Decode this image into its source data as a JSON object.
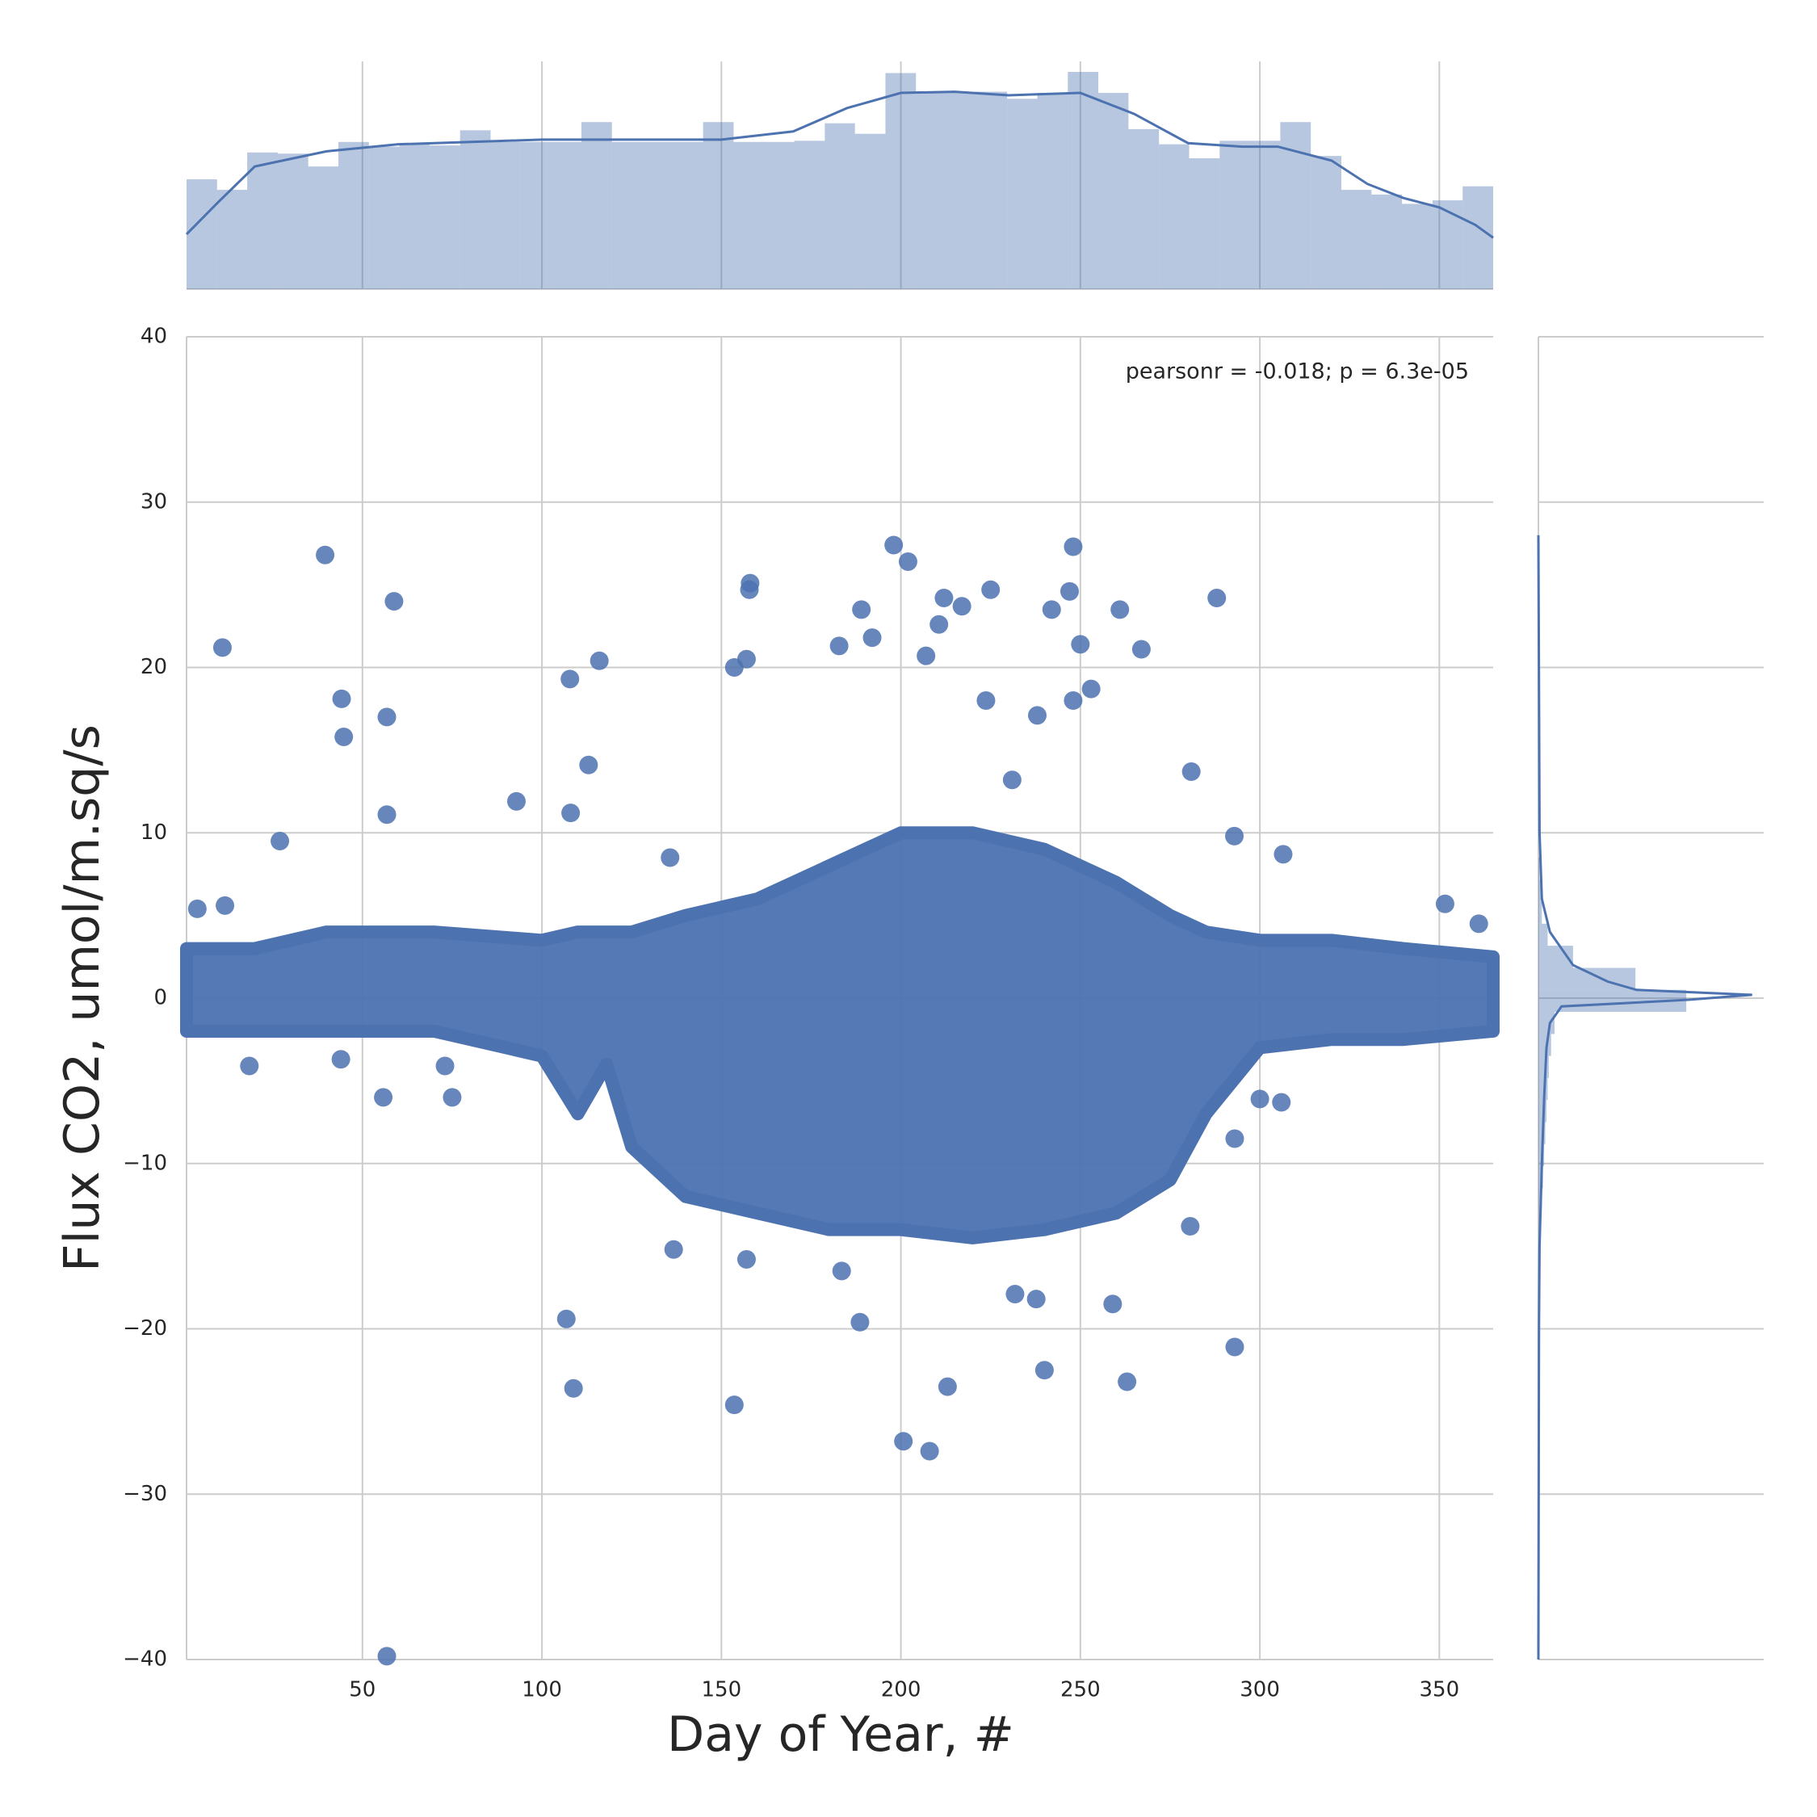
{
  "chart_data": {
    "type": "jointplot",
    "color": "#4c72b0",
    "hist_color": "#b4c3de",
    "grid": true,
    "xlabel": "Day of Year, #",
    "ylabel": "Flux CO2, umol/m.sq/s",
    "annotation": "pearsonr = -0.018; p = 6.3e-05",
    "xlim": [
      1,
      365
    ],
    "ylim": [
      -40,
      40
    ],
    "xticks": [
      50,
      100,
      150,
      200,
      250,
      300,
      350
    ],
    "yticks": [
      {
        "value": -40,
        "label": "−40"
      },
      {
        "value": -30,
        "label": "−30"
      },
      {
        "value": -20,
        "label": "−20"
      },
      {
        "value": -10,
        "label": "−10"
      },
      0,
      10,
      20,
      30,
      40
    ],
    "scatter": {
      "x": [
        39.6,
        11,
        58.8,
        44.2,
        44.8,
        56.8,
        56.8,
        27,
        56.8,
        107.8,
        116,
        92.9,
        108,
        113,
        106.8,
        108.8,
        153.6,
        158,
        157.8,
        153.6,
        157,
        198,
        202,
        182.8,
        189,
        192,
        212,
        225,
        217,
        242,
        248,
        247,
        250,
        261,
        267,
        288,
        292.9,
        306.5,
        293,
        240,
        263,
        213,
        200.7,
        208,
        188.6,
        259,
        207,
        210.6,
        223.7,
        248,
        253,
        4,
        11.7,
        18.5,
        44,
        55.8,
        75,
        73,
        300,
        306,
        293,
        351.6,
        361,
        280.9,
        280.6,
        136.7,
        157,
        237.7,
        183.5,
        231.8,
        135.7,
        231,
        238
      ],
      "y": [
        26.8,
        21.2,
        24.0,
        18.1,
        15.8,
        17.0,
        11.1,
        9.5,
        -39.8,
        19.3,
        20.4,
        11.9,
        11.2,
        14.1,
        -19.4,
        -23.6,
        -24.6,
        25.1,
        24.7,
        20.0,
        20.5,
        27.4,
        26.4,
        21.3,
        23.5,
        21.8,
        24.2,
        24.7,
        23.7,
        23.5,
        27.3,
        24.6,
        21.4,
        23.5,
        21.1,
        24.2,
        9.8,
        8.7,
        -21.1,
        -22.5,
        -23.2,
        -23.5,
        -26.8,
        -27.4,
        -19.6,
        -18.5,
        20.7,
        22.6,
        18.0,
        18.0,
        18.7,
        5.4,
        5.6,
        -4.1,
        -3.7,
        -6.0,
        -6.0,
        -4.1,
        -6.1,
        -6.3,
        -8.5,
        5.7,
        4.5,
        13.7,
        -13.8,
        -15.2,
        -15.8,
        -18.2,
        -16.5,
        -17.9,
        8.5,
        13.2,
        17.1
      ]
    },
    "envelope": {
      "x": [
        1,
        20,
        40,
        70,
        100,
        110,
        118,
        125,
        140,
        160,
        180,
        200,
        220,
        240,
        260,
        275,
        285,
        300,
        320,
        340,
        365
      ],
      "upper": [
        3,
        3,
        4,
        4,
        3.5,
        4,
        4,
        4,
        5,
        6,
        8,
        10,
        10,
        9,
        7,
        5,
        4,
        3.5,
        3.5,
        3,
        2.5
      ],
      "lower": [
        -2,
        -2,
        -2,
        -2,
        -3.5,
        -7,
        -4,
        -9,
        -12,
        -13,
        -14,
        -14,
        -14.5,
        -14,
        -13,
        -11,
        -7,
        -3,
        -2.5,
        -2.5,
        -2
      ]
    },
    "x_marginal": {
      "lim": [
        0,
        195
      ],
      "bins": [
        1,
        9.5,
        17.9,
        26.4,
        34.9,
        43.3,
        51.8,
        60.3,
        68.7,
        77.2,
        85.7,
        94.1,
        102.6,
        111.0,
        119.5,
        128.0,
        136.4,
        144.9,
        153.4,
        161.8,
        170.3,
        178.8,
        187.2,
        195.7,
        204.2,
        212.6,
        221.1,
        229.6,
        238.0,
        246.5,
        255.0,
        263.4,
        271.9,
        280.3,
        288.8,
        297.3,
        305.7,
        314.2,
        322.7,
        331.1,
        339.6,
        348.1,
        356.5,
        365
      ],
      "counts": [
        94,
        85,
        117,
        116,
        105,
        126,
        122,
        124,
        123,
        136,
        126,
        126,
        126,
        143,
        126,
        126,
        126,
        143,
        126,
        126,
        127,
        142,
        133,
        185,
        169,
        169,
        169,
        163,
        168,
        186,
        168,
        137,
        124,
        112,
        127,
        127,
        143,
        114,
        85,
        81,
        73,
        76,
        88
      ],
      "kde": {
        "x": [
          1,
          10,
          20,
          40,
          60,
          100,
          150,
          170,
          185,
          200,
          215,
          230,
          250,
          265,
          280,
          295,
          305,
          320,
          330,
          340,
          350,
          360,
          365
        ],
        "y": [
          47,
          75,
          105,
          118,
          124,
          128,
          128,
          135,
          155,
          168,
          169,
          166,
          168,
          150,
          125,
          122,
          122,
          110,
          90,
          78,
          70,
          55,
          44
        ]
      }
    },
    "y_marginal": {
      "lim": [
        0,
        195
      ],
      "bins": [
        -15.5,
        -14.17,
        -12.83,
        -11.5,
        -10.17,
        -8.83,
        -7.5,
        -6.17,
        -4.83,
        -3.5,
        -2.17,
        -0.83,
        0.5,
        1.83,
        3.17,
        4.5,
        5.83,
        7.17,
        8.5
      ],
      "counts": [
        1,
        2,
        3,
        4,
        5,
        6,
        7,
        8,
        9,
        11,
        14,
        128,
        84,
        30,
        8,
        3,
        2,
        1
      ],
      "kde": {
        "y": [
          28,
          10,
          6,
          4,
          2,
          1,
          0.5,
          0.2,
          -0.1,
          -0.5,
          -1,
          -1.5,
          -3,
          -6,
          -10,
          -15,
          -20,
          -40
        ],
        "density": [
          0,
          1,
          3,
          10,
          30,
          60,
          85,
          185,
          130,
          20,
          15,
          10,
          7,
          5,
          3,
          1,
          0.5,
          0
        ]
      }
    }
  }
}
